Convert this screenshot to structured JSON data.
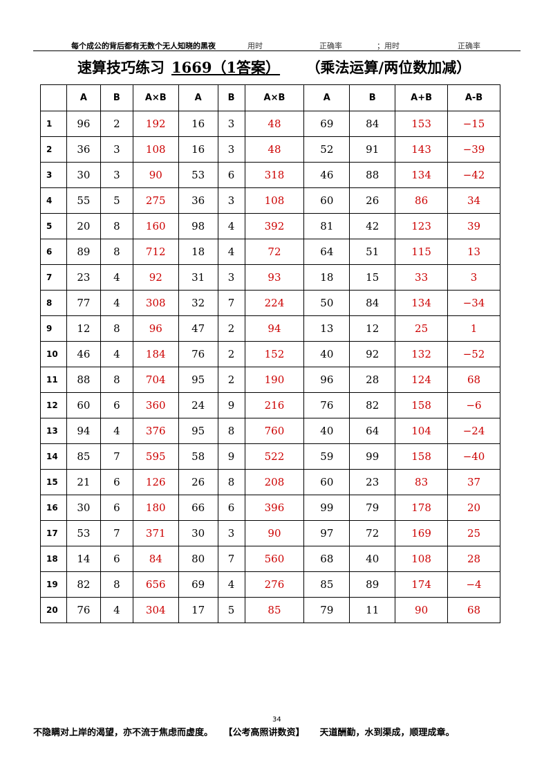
{
  "header": {
    "motto": "每个成公的背后都有无数个无人知晓的黑夜",
    "time_label": "用时",
    "accuracy_label": "正确率",
    "separator": "；",
    "time_label2": "用时",
    "accuracy_label2": "正确率"
  },
  "title": {
    "main": "速算技巧练习",
    "code": "1669（1答案）",
    "subtitle": "（乘法运算/两位数加减）"
  },
  "table": {
    "headers": [
      "",
      "A",
      "B",
      "A×B",
      "A",
      "B",
      "A×B",
      "A",
      "B",
      "A+B",
      "A-B"
    ],
    "rows": [
      [
        "1",
        "96",
        "2",
        "192",
        "16",
        "3",
        "48",
        "69",
        "84",
        "153",
        "−15"
      ],
      [
        "2",
        "36",
        "3",
        "108",
        "16",
        "3",
        "48",
        "52",
        "91",
        "143",
        "−39"
      ],
      [
        "3",
        "30",
        "3",
        "90",
        "53",
        "6",
        "318",
        "46",
        "88",
        "134",
        "−42"
      ],
      [
        "4",
        "55",
        "5",
        "275",
        "36",
        "3",
        "108",
        "60",
        "26",
        "86",
        "34"
      ],
      [
        "5",
        "20",
        "8",
        "160",
        "98",
        "4",
        "392",
        "81",
        "42",
        "123",
        "39"
      ],
      [
        "6",
        "89",
        "8",
        "712",
        "18",
        "4",
        "72",
        "64",
        "51",
        "115",
        "13"
      ],
      [
        "7",
        "23",
        "4",
        "92",
        "31",
        "3",
        "93",
        "18",
        "15",
        "33",
        "3"
      ],
      [
        "8",
        "77",
        "4",
        "308",
        "32",
        "7",
        "224",
        "50",
        "84",
        "134",
        "−34"
      ],
      [
        "9",
        "12",
        "8",
        "96",
        "47",
        "2",
        "94",
        "13",
        "12",
        "25",
        "1"
      ],
      [
        "10",
        "46",
        "4",
        "184",
        "76",
        "2",
        "152",
        "40",
        "92",
        "132",
        "−52"
      ],
      [
        "11",
        "88",
        "8",
        "704",
        "95",
        "2",
        "190",
        "96",
        "28",
        "124",
        "68"
      ],
      [
        "12",
        "60",
        "6",
        "360",
        "24",
        "9",
        "216",
        "76",
        "82",
        "158",
        "−6"
      ],
      [
        "13",
        "94",
        "4",
        "376",
        "95",
        "8",
        "760",
        "40",
        "64",
        "104",
        "−24"
      ],
      [
        "14",
        "85",
        "7",
        "595",
        "58",
        "9",
        "522",
        "59",
        "99",
        "158",
        "−40"
      ],
      [
        "15",
        "21",
        "6",
        "126",
        "26",
        "8",
        "208",
        "60",
        "23",
        "83",
        "37"
      ],
      [
        "16",
        "30",
        "6",
        "180",
        "66",
        "6",
        "396",
        "99",
        "79",
        "178",
        "20"
      ],
      [
        "17",
        "53",
        "7",
        "371",
        "30",
        "3",
        "90",
        "97",
        "72",
        "169",
        "25"
      ],
      [
        "18",
        "14",
        "6",
        "84",
        "80",
        "7",
        "560",
        "68",
        "40",
        "108",
        "28"
      ],
      [
        "19",
        "82",
        "8",
        "656",
        "69",
        "4",
        "276",
        "85",
        "89",
        "174",
        "−4"
      ],
      [
        "20",
        "76",
        "4",
        "304",
        "17",
        "5",
        "85",
        "79",
        "11",
        "90",
        "68"
      ]
    ]
  },
  "answer_color": "#cc0000",
  "page_number": "34",
  "footer": {
    "left": "不隐瞒对上岸的渴望，亦不流于焦虑而虚度。",
    "center": "【公考高照讲数资】",
    "right": "天道酬勤，水到渠成，顺理成章。"
  }
}
